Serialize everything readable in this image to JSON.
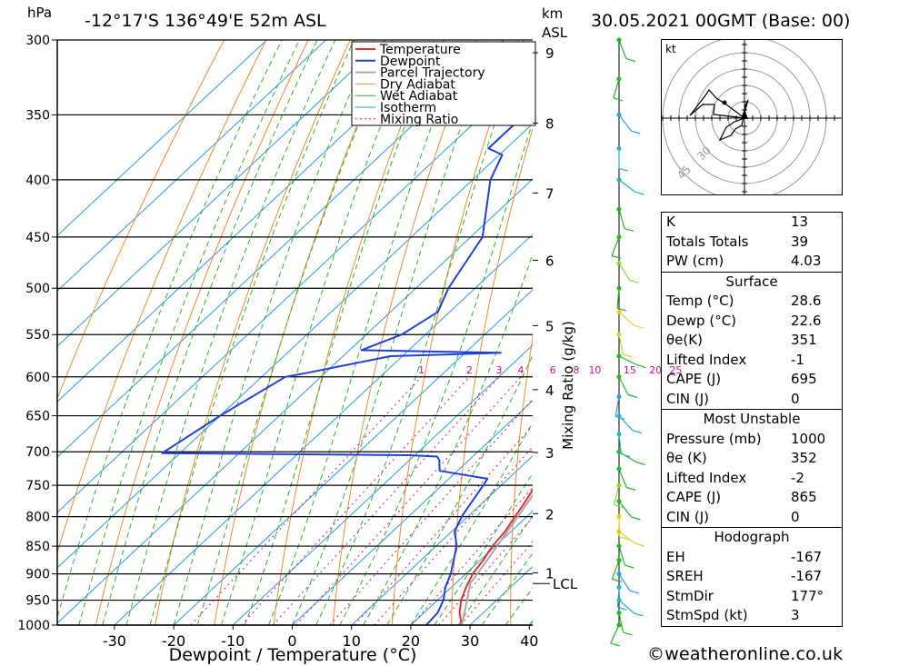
{
  "header": {
    "location": "-12°17'S 136°49'E 52m ASL",
    "datetime": "30.05.2021 00GMT (Base: 00)",
    "hpa_unit": "hPa",
    "km_unit": "km",
    "asl_label": "ASL"
  },
  "chart_data": {
    "type": "line",
    "title": "-12°17'S 136°49'E 52m ASL",
    "xlabel": "Dewpoint / Temperature (°C)",
    "ylabel": "hPa",
    "secondary_ylabel": "Mixing Ratio (g/kg)",
    "xlim": [
      -40,
      40
    ],
    "ylim": [
      1000,
      300
    ],
    "y_scale": "log",
    "x_ticks": [
      -30,
      -20,
      -10,
      0,
      10,
      20,
      30,
      40
    ],
    "pressure_levels": [
      300,
      350,
      400,
      450,
      500,
      550,
      600,
      650,
      700,
      750,
      800,
      850,
      900,
      950,
      1000
    ],
    "km_ticks": [
      {
        "km": 1,
        "p": 898
      },
      {
        "km": 2,
        "p": 795
      },
      {
        "km": 3,
        "p": 701
      },
      {
        "km": 4,
        "p": 616
      },
      {
        "km": 5,
        "p": 540
      },
      {
        "km": 6,
        "p": 472
      },
      {
        "km": 7,
        "p": 411
      },
      {
        "km": 8,
        "p": 356
      },
      {
        "km": 9,
        "p": 308
      }
    ],
    "lcl_label": "LCL",
    "lcl_pressure": 918,
    "mixing_ratio_labels": [
      "1",
      "2",
      "3",
      "4",
      "6",
      "8",
      "10",
      "15",
      "20",
      "25"
    ],
    "mixing_ratio_values": [
      1,
      2,
      3,
      4,
      6,
      8,
      10,
      15,
      20,
      25
    ],
    "legend": [
      "Temperature",
      "Dewpoint",
      "Parcel Trajectory",
      "Dry Adiabat",
      "Wet Adiabat",
      "Isotherm",
      "Mixing Ratio"
    ],
    "legend_position": "top-right",
    "series": [
      {
        "name": "Temperature",
        "color": "#e03030",
        "points": [
          [
            1000,
            28.6
          ],
          [
            975,
            26.0
          ],
          [
            950,
            24.0
          ],
          [
            925,
            22.5
          ],
          [
            900,
            21.2
          ],
          [
            875,
            20.5
          ],
          [
            850,
            19.5
          ],
          [
            825,
            19.0
          ],
          [
            800,
            18.0
          ],
          [
            775,
            17.0
          ],
          [
            750,
            15.8
          ],
          [
            735,
            15.0
          ],
          [
            725,
            16.2
          ],
          [
            710,
            16.0
          ],
          [
            700,
            15.3
          ],
          [
            690,
            15.2
          ],
          [
            675,
            13.5
          ],
          [
            650,
            11.3
          ],
          [
            600,
            6.0
          ],
          [
            580,
            4.0
          ],
          [
            570,
            4.5
          ],
          [
            550,
            2.0
          ],
          [
            525,
            0.0
          ],
          [
            500,
            -3.8
          ],
          [
            450,
            -12.0
          ],
          [
            400,
            -20.5
          ],
          [
            375,
            -24.0
          ],
          [
            365,
            -24.0
          ],
          [
            350,
            -28.0
          ],
          [
            335,
            -31.0
          ]
        ]
      },
      {
        "name": "Dewpoint",
        "color": "#2040d8",
        "points": [
          [
            1000,
            22.6
          ],
          [
            975,
            22.3
          ],
          [
            950,
            21.0
          ],
          [
            925,
            19.0
          ],
          [
            900,
            17.5
          ],
          [
            875,
            15.5
          ],
          [
            850,
            13.5
          ],
          [
            825,
            10.5
          ],
          [
            800,
            9.0
          ],
          [
            775,
            8.0
          ],
          [
            750,
            7.0
          ],
          [
            740,
            6.5
          ],
          [
            728,
            -3.0
          ],
          [
            712,
            -5.0
          ],
          [
            707,
            -6.0
          ],
          [
            705,
            -11.0
          ],
          [
            702,
            -53.0
          ],
          [
            650,
            -50.0
          ],
          [
            600,
            -46.0
          ],
          [
            595,
            -43.0
          ],
          [
            575,
            -32.0
          ],
          [
            571,
            -14.0
          ],
          [
            568,
            -38.0
          ],
          [
            550,
            -34.0
          ],
          [
            525,
            -32.0
          ],
          [
            500,
            -34.5
          ],
          [
            450,
            -38.0
          ],
          [
            400,
            -47.0
          ],
          [
            380,
            -49.5
          ],
          [
            375,
            -53.0
          ],
          [
            350,
            -53.0
          ],
          [
            300,
            -55.0
          ],
          [
            290,
            -53.0
          ]
        ]
      },
      {
        "name": "Parcel Trajectory",
        "color": "#a8a8a8",
        "points": [
          [
            1000,
            28.6
          ],
          [
            950,
            25.0
          ],
          [
            918,
            22.5
          ],
          [
            900,
            22.0
          ],
          [
            850,
            20.3
          ],
          [
            800,
            18.5
          ],
          [
            750,
            16.5
          ],
          [
            700,
            14.3
          ],
          [
            650,
            11.5
          ],
          [
            600,
            8.0
          ],
          [
            550,
            4.5
          ],
          [
            500,
            0.2
          ],
          [
            450,
            -5.0
          ],
          [
            400,
            -12.0
          ],
          [
            350,
            -20.5
          ],
          [
            335,
            -23.5
          ]
        ]
      }
    ],
    "wind_barb_pressures": [
      1000,
      975,
      950,
      925,
      900,
      875,
      850,
      825,
      800,
      775,
      750,
      725,
      700,
      675,
      650,
      625,
      600,
      575,
      550,
      525,
      500,
      475,
      450,
      425,
      400,
      375,
      350,
      325,
      300
    ],
    "hodograph": {
      "unit_label": "kt",
      "ring_labels": [
        "30",
        "45"
      ]
    }
  },
  "indices": {
    "rows": [
      {
        "label": "K",
        "value": "13"
      },
      {
        "label": "Totals Totals",
        "value": "39"
      },
      {
        "label": "PW (cm)",
        "value": "4.03"
      }
    ]
  },
  "surface": {
    "title": "Surface",
    "rows": [
      {
        "label": "Temp (°C)",
        "value": "28.6"
      },
      {
        "label": "Dewp (°C)",
        "value": "22.6"
      },
      {
        "label": "θe(K)",
        "value": "351"
      },
      {
        "label": "Lifted Index",
        "value": "-1"
      },
      {
        "label": "CAPE (J)",
        "value": "695"
      },
      {
        "label": "CIN (J)",
        "value": "0"
      }
    ]
  },
  "most_unstable": {
    "title": "Most Unstable",
    "rows": [
      {
        "label": "Pressure (mb)",
        "value": "1000"
      },
      {
        "label": "θe (K)",
        "value": "352"
      },
      {
        "label": "Lifted Index",
        "value": "-2"
      },
      {
        "label": "CAPE (J)",
        "value": "865"
      },
      {
        "label": "CIN (J)",
        "value": "0"
      }
    ]
  },
  "hodograph_table": {
    "title": "Hodograph",
    "rows": [
      {
        "label": "EH",
        "value": "-167"
      },
      {
        "label": "SREH",
        "value": "-167"
      },
      {
        "label": "StmDir",
        "value": "177°"
      },
      {
        "label": "StmSpd (kt)",
        "value": "3"
      }
    ]
  },
  "footer": {
    "copyright_symbol": "©",
    "site": "weatheronline.co.uk"
  },
  "colors": {
    "temperature": "#e03030",
    "dewpoint": "#2040d8",
    "parcel": "#a8a8a8",
    "dry_adiabat": "#f08a2c",
    "wet_adiabat": "#22b822",
    "isotherm": "#2a9ce0",
    "mixing_ratio": "#d01088"
  }
}
